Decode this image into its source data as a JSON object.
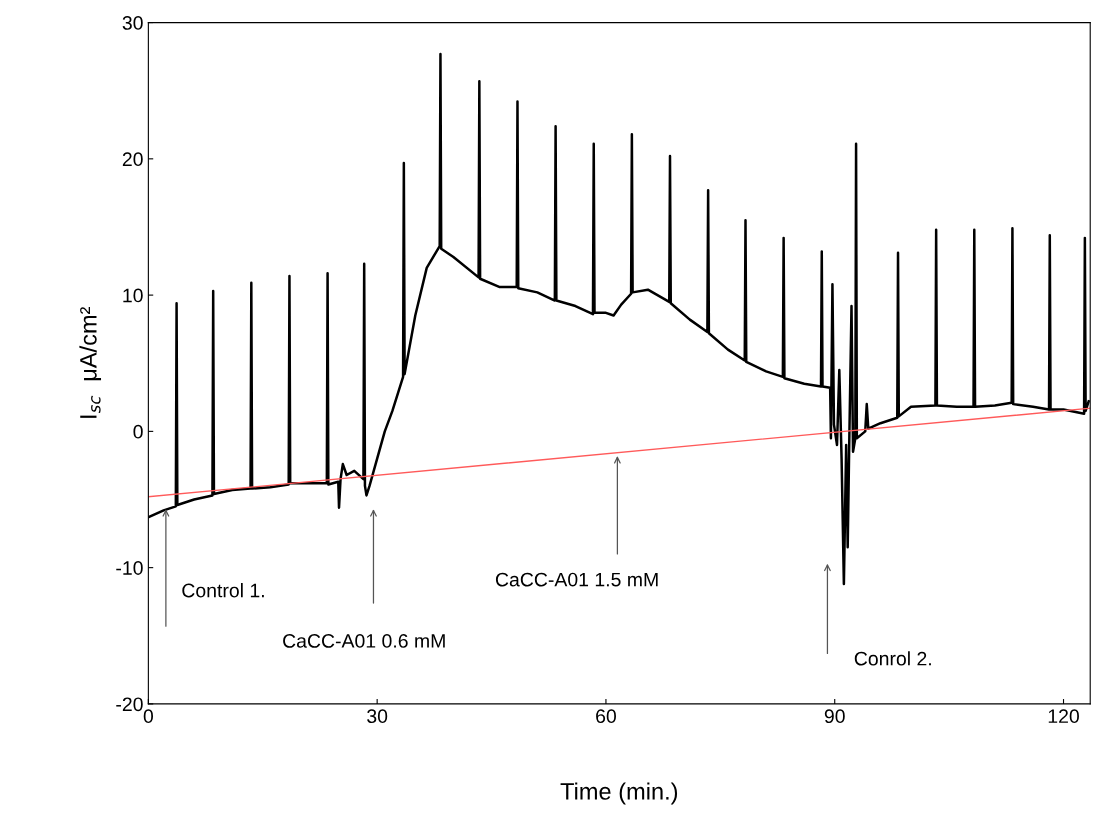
{
  "chart_data": {
    "type": "line",
    "xlabel": "Time (min.)",
    "ylabel": "I$_{sc}$  μA/cm²",
    "xlim": [
      0,
      123.5
    ],
    "xticks": [
      0,
      30,
      60,
      90,
      120
    ],
    "ylim": [
      -20,
      30
    ],
    "yticks": [
      -20,
      -10,
      0,
      10,
      20,
      30
    ],
    "grid": false,
    "legend": false,
    "marker": "none",
    "line_style": "solid",
    "series": [
      {
        "color": "#000000",
        "x": [
          0,
          2,
          3.6,
          3.7,
          3.8,
          6,
          8.4,
          8.5,
          8.6,
          11,
          13.4,
          13.5,
          13.6,
          16,
          18.4,
          18.5,
          18.6,
          21,
          23.4,
          23.5,
          23.6,
          24.9,
          25,
          25.2,
          25.5,
          26,
          27,
          28.2,
          28.3,
          28.4,
          28.6,
          29,
          30,
          31,
          32,
          33.4,
          33.5,
          33.6,
          35,
          36.5,
          38.2,
          38.3,
          38.4,
          40,
          43.3,
          43.4,
          43.5,
          46,
          48.3,
          48.4,
          48.5,
          51,
          53.3,
          53.4,
          53.5,
          56,
          58.3,
          58.4,
          58.5,
          60,
          61,
          62,
          63.3,
          63.4,
          63.5,
          65.5,
          68.3,
          68.4,
          68.5,
          71,
          73.3,
          73.4,
          73.5,
          76,
          78.2,
          78.3,
          78.4,
          81,
          83.2,
          83.3,
          83.4,
          86,
          88.2,
          88.3,
          88.4,
          89.4,
          89.5,
          89.7,
          89.9,
          90.3,
          90.6,
          90.9,
          91.2,
          91.5,
          91.7,
          91.9,
          92.2,
          92.4,
          92.7,
          92.8,
          92.9,
          94,
          94.2,
          94.4,
          96,
          98.2,
          98.3,
          98.4,
          100,
          103.2,
          103.3,
          103.4,
          106,
          108.2,
          108.3,
          108.4,
          111,
          113.2,
          113.3,
          113.4,
          116,
          118.1,
          118.2,
          118.3,
          120,
          122.7,
          122.8,
          122.9,
          123.3
        ],
        "values": [
          -6.3,
          -5.8,
          -5.5,
          9.4,
          -5.4,
          -5.0,
          -4.7,
          10.3,
          -4.6,
          -4.3,
          -4.2,
          10.9,
          -4.2,
          -4.1,
          -3.9,
          11.4,
          -3.8,
          -3.8,
          -3.8,
          11.6,
          -3.9,
          -3.7,
          -5.6,
          -3.5,
          -2.4,
          -3.2,
          -2.9,
          -3.5,
          12.3,
          -4.0,
          -4.7,
          -4.0,
          -2.0,
          0,
          1.5,
          4,
          19.7,
          4.2,
          8.5,
          12,
          13.6,
          27.7,
          13.4,
          12.8,
          11.3,
          25.7,
          11.2,
          10.6,
          10.6,
          24.2,
          10.5,
          10.2,
          9.6,
          22.4,
          9.6,
          9.2,
          8.6,
          21.1,
          8.7,
          8.7,
          8.5,
          9.3,
          10.1,
          21.8,
          10.2,
          10.4,
          9.5,
          20.2,
          9.4,
          8.2,
          7.3,
          17.7,
          7.2,
          6.0,
          5.2,
          15.5,
          5.1,
          4.4,
          4.0,
          14.2,
          3.9,
          3.5,
          3.3,
          13.2,
          3.3,
          3.2,
          -0.5,
          10.8,
          0.5,
          -1,
          4.5,
          -2,
          -11.2,
          -1,
          -8.5,
          -1,
          9.2,
          -1.5,
          -0.5,
          21.1,
          -0.5,
          0,
          2,
          0.2,
          0.6,
          1.0,
          13.1,
          1.1,
          1.8,
          1.9,
          14.8,
          1.9,
          1.8,
          1.8,
          14.8,
          1.8,
          1.9,
          2.1,
          14.9,
          2.0,
          1.8,
          1.6,
          14.4,
          1.6,
          1.6,
          1.3,
          14.2,
          1.5,
          2.2
        ]
      },
      {
        "color": "#ff5a5a",
        "x": [
          0,
          123.5
        ],
        "values": [
          -4.8,
          1.7
        ]
      }
    ],
    "annotations": [
      "Control 1.",
      "CaCC-A01 0.6 mM",
      {
        "text": "CaCC-A01 1.5 mM",
        "x": 61.5,
        "y": -1.6
      },
      "Conrol 2."
    ]
  }
}
